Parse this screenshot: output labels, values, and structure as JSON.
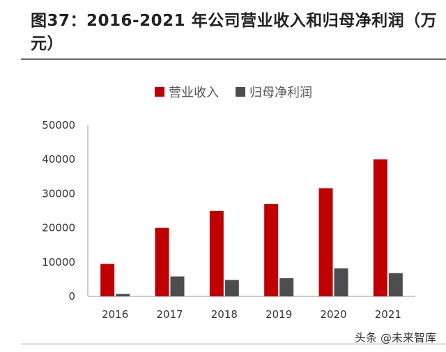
{
  "header": {
    "title": "图37：2016-2021 年公司营业收入和归母净利润（万元）"
  },
  "watermark": "头条 @未来智库",
  "chart_data": {
    "type": "bar",
    "title": "图37：2016-2021 年公司营业收入和归母净利润（万元）",
    "xlabel": "",
    "ylabel": "",
    "categories": [
      "2016",
      "2017",
      "2018",
      "2019",
      "2020",
      "2021"
    ],
    "series": [
      {
        "name": "营业收入",
        "color": "#c00000",
        "values": [
          9500,
          20000,
          25000,
          27000,
          31600,
          40000
        ]
      },
      {
        "name": "归母净利润",
        "color": "#4d4d4f",
        "values": [
          700,
          5800,
          4800,
          5300,
          8200,
          6800
        ]
      }
    ],
    "ylim": [
      0,
      50000
    ],
    "yticks": [
      0,
      10000,
      20000,
      30000,
      40000,
      50000
    ],
    "grid": false,
    "legend": "top-center"
  }
}
